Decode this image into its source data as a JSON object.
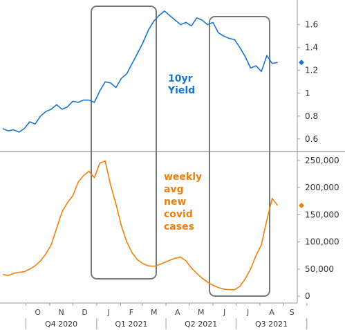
{
  "chart_data": [
    {
      "type": "line",
      "title": "",
      "annotation_lines": [
        "10yr",
        "Yield"
      ],
      "color": "#1874cd",
      "x_range": [
        "2020-09-01",
        "2021-09-15"
      ],
      "ylim": [
        0.52,
        1.78
      ],
      "y_ticks": [
        "0.6",
        "0.8",
        "1",
        "1.2",
        "1.4",
        "1.6"
      ],
      "latest_value": 1.27,
      "series": [
        {
          "x": [
            "2020-09-01",
            "2020-09-08",
            "2020-09-15",
            "2020-09-22",
            "2020-09-29",
            "2020-10-06",
            "2020-10-13",
            "2020-10-20",
            "2020-10-27",
            "2020-11-03",
            "2020-11-10",
            "2020-11-17",
            "2020-11-24",
            "2020-12-01",
            "2020-12-08",
            "2020-12-15",
            "2020-12-22",
            "2020-12-29",
            "2021-01-05",
            "2021-01-12",
            "2021-01-19",
            "2021-01-26",
            "2021-02-02",
            "2021-02-09",
            "2021-02-16",
            "2021-02-23",
            "2021-03-02",
            "2021-03-09",
            "2021-03-16",
            "2021-03-23",
            "2021-03-30",
            "2021-04-06",
            "2021-04-13",
            "2021-04-20",
            "2021-04-27",
            "2021-05-04",
            "2021-05-11",
            "2021-05-18",
            "2021-05-25",
            "2021-06-01",
            "2021-06-08",
            "2021-06-15",
            "2021-06-22",
            "2021-06-29",
            "2021-07-06",
            "2021-07-13",
            "2021-07-20",
            "2021-07-27",
            "2021-08-03",
            "2021-08-10",
            "2021-08-17",
            "2021-08-24"
          ],
          "values": [
            0.69,
            0.67,
            0.68,
            0.66,
            0.69,
            0.75,
            0.73,
            0.8,
            0.84,
            0.86,
            0.9,
            0.86,
            0.88,
            0.93,
            0.92,
            0.94,
            0.94,
            0.92,
            1.02,
            1.1,
            1.09,
            1.05,
            1.13,
            1.17,
            1.26,
            1.35,
            1.44,
            1.55,
            1.63,
            1.68,
            1.72,
            1.68,
            1.64,
            1.6,
            1.62,
            1.59,
            1.66,
            1.64,
            1.6,
            1.62,
            1.53,
            1.5,
            1.48,
            1.47,
            1.4,
            1.32,
            1.22,
            1.24,
            1.19,
            1.33,
            1.26,
            1.27
          ]
        }
      ]
    },
    {
      "type": "line",
      "title": "",
      "annotation_lines": [
        "weekly",
        "avg",
        "new",
        "covid",
        "cases"
      ],
      "color": "#f07f0c",
      "x_range": [
        "2020-09-01",
        "2021-09-15"
      ],
      "ylim": [
        -10000,
        260000
      ],
      "y_ticks": [
        "0",
        "50,000",
        "100,000",
        "150,000",
        "200,000",
        "250,000"
      ],
      "latest_value": 167000,
      "series": [
        {
          "x": [
            "2020-09-01",
            "2020-09-08",
            "2020-09-15",
            "2020-09-22",
            "2020-09-29",
            "2020-10-06",
            "2020-10-13",
            "2020-10-20",
            "2020-10-27",
            "2020-11-03",
            "2020-11-10",
            "2020-11-17",
            "2020-11-24",
            "2020-12-01",
            "2020-12-08",
            "2020-12-15",
            "2020-12-22",
            "2020-12-29",
            "2021-01-05",
            "2021-01-12",
            "2021-01-19",
            "2021-01-26",
            "2021-02-02",
            "2021-02-09",
            "2021-02-16",
            "2021-02-23",
            "2021-03-02",
            "2021-03-09",
            "2021-03-16",
            "2021-03-23",
            "2021-03-30",
            "2021-04-06",
            "2021-04-13",
            "2021-04-20",
            "2021-04-27",
            "2021-05-04",
            "2021-05-11",
            "2021-05-18",
            "2021-05-25",
            "2021-06-01",
            "2021-06-08",
            "2021-06-15",
            "2021-06-22",
            "2021-06-29",
            "2021-07-06",
            "2021-07-13",
            "2021-07-20",
            "2021-07-27",
            "2021-08-03",
            "2021-08-10",
            "2021-08-17",
            "2021-08-24"
          ],
          "values": [
            40000,
            38000,
            42000,
            44000,
            45000,
            50000,
            56000,
            65000,
            78000,
            95000,
            125000,
            155000,
            172000,
            185000,
            210000,
            222000,
            230000,
            218000,
            245000,
            249000,
            205000,
            170000,
            130000,
            100000,
            80000,
            67000,
            60000,
            56000,
            55000,
            58000,
            62000,
            66000,
            70000,
            72000,
            65000,
            52000,
            42000,
            33000,
            26000,
            20000,
            16000,
            13000,
            12000,
            12000,
            18000,
            32000,
            50000,
            75000,
            95000,
            140000,
            180000,
            167000
          ]
        }
      ]
    }
  ],
  "x_axis": {
    "months": [
      "O",
      "N",
      "D",
      "J",
      "F",
      "M",
      "A",
      "M",
      "J",
      "J",
      "A",
      "S"
    ],
    "quarters": [
      "Q4 2020",
      "Q1 2021",
      "Q2 2021",
      "Q3 2021"
    ]
  }
}
